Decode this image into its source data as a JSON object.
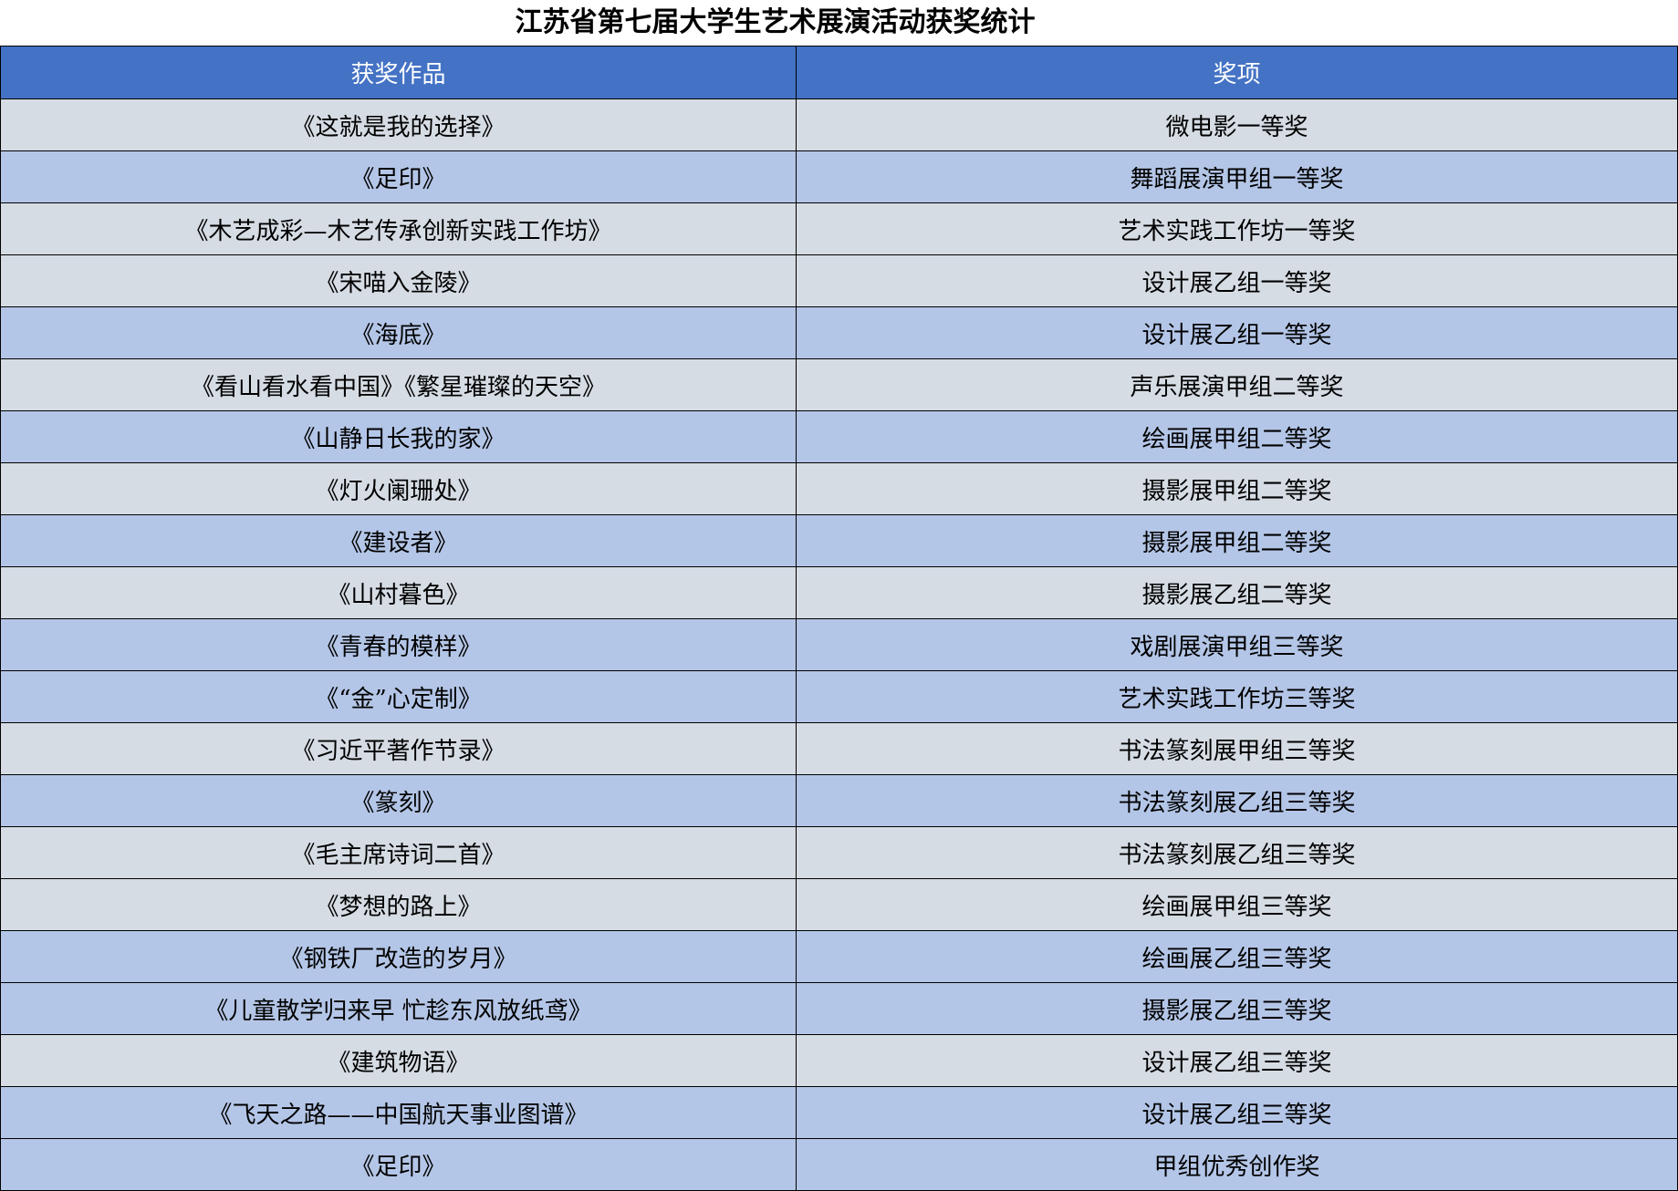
{
  "title": "江苏省第七届大学生艺术展演活动获奖统计",
  "colors": {
    "header": "#4472c4",
    "row_gray": "#d6dce4",
    "row_blue": "#b4c6e7"
  },
  "columns": [
    "获奖作品",
    "奖项"
  ],
  "rows": [
    {
      "work": "《这就是我的选择》",
      "award": "微电影一等奖",
      "shade": "gray"
    },
    {
      "work": "《足印》",
      "award": "舞蹈展演甲组一等奖",
      "shade": "blue"
    },
    {
      "work": "《木艺成彩—木艺传承创新实践工作坊》",
      "award": "艺术实践工作坊一等奖",
      "shade": "gray"
    },
    {
      "work": "《宋喵入金陵》",
      "award": "设计展乙组一等奖",
      "shade": "gray"
    },
    {
      "work": "《海底》",
      "award": "设计展乙组一等奖",
      "shade": "blue"
    },
    {
      "work": "《看山看水看中国》《繁星璀璨的天空》",
      "award": "声乐展演甲组二等奖",
      "shade": "gray"
    },
    {
      "work": "《山静日长我的家》",
      "award": "绘画展甲组二等奖",
      "shade": "blue"
    },
    {
      "work": "《灯火阑珊处》",
      "award": "摄影展甲组二等奖",
      "shade": "gray"
    },
    {
      "work": "《建设者》",
      "award": "摄影展甲组二等奖",
      "shade": "blue"
    },
    {
      "work": "《山村暮色》",
      "award": "摄影展乙组二等奖",
      "shade": "gray"
    },
    {
      "work": "《青春的模样》",
      "award": "戏剧展演甲组三等奖",
      "shade": "blue"
    },
    {
      "work": "《“金”心定制》",
      "award": "艺术实践工作坊三等奖",
      "shade": "blue"
    },
    {
      "work": "《习近平著作节录》",
      "award": "书法篆刻展甲组三等奖",
      "shade": "gray"
    },
    {
      "work": "《篆刻》",
      "award": "书法篆刻展乙组三等奖",
      "shade": "blue"
    },
    {
      "work": "《毛主席诗词二首》",
      "award": "书法篆刻展乙组三等奖",
      "shade": "gray"
    },
    {
      "work": "《梦想的路上》",
      "award": "绘画展甲组三等奖",
      "shade": "gray"
    },
    {
      "work": "《钢铁厂改造的岁月》",
      "award": "绘画展乙组三等奖",
      "shade": "blue"
    },
    {
      "work": "《儿童散学归来早  忙趁东风放纸鸢》",
      "award": "摄影展乙组三等奖",
      "shade": "blue"
    },
    {
      "work": "《建筑物语》",
      "award": "设计展乙组三等奖",
      "shade": "gray"
    },
    {
      "work": "《飞天之路——中国航天事业图谱》",
      "award": "设计展乙组三等奖",
      "shade": "blue"
    },
    {
      "work": "《足印》",
      "award": "甲组优秀创作奖",
      "shade": "blue"
    }
  ]
}
